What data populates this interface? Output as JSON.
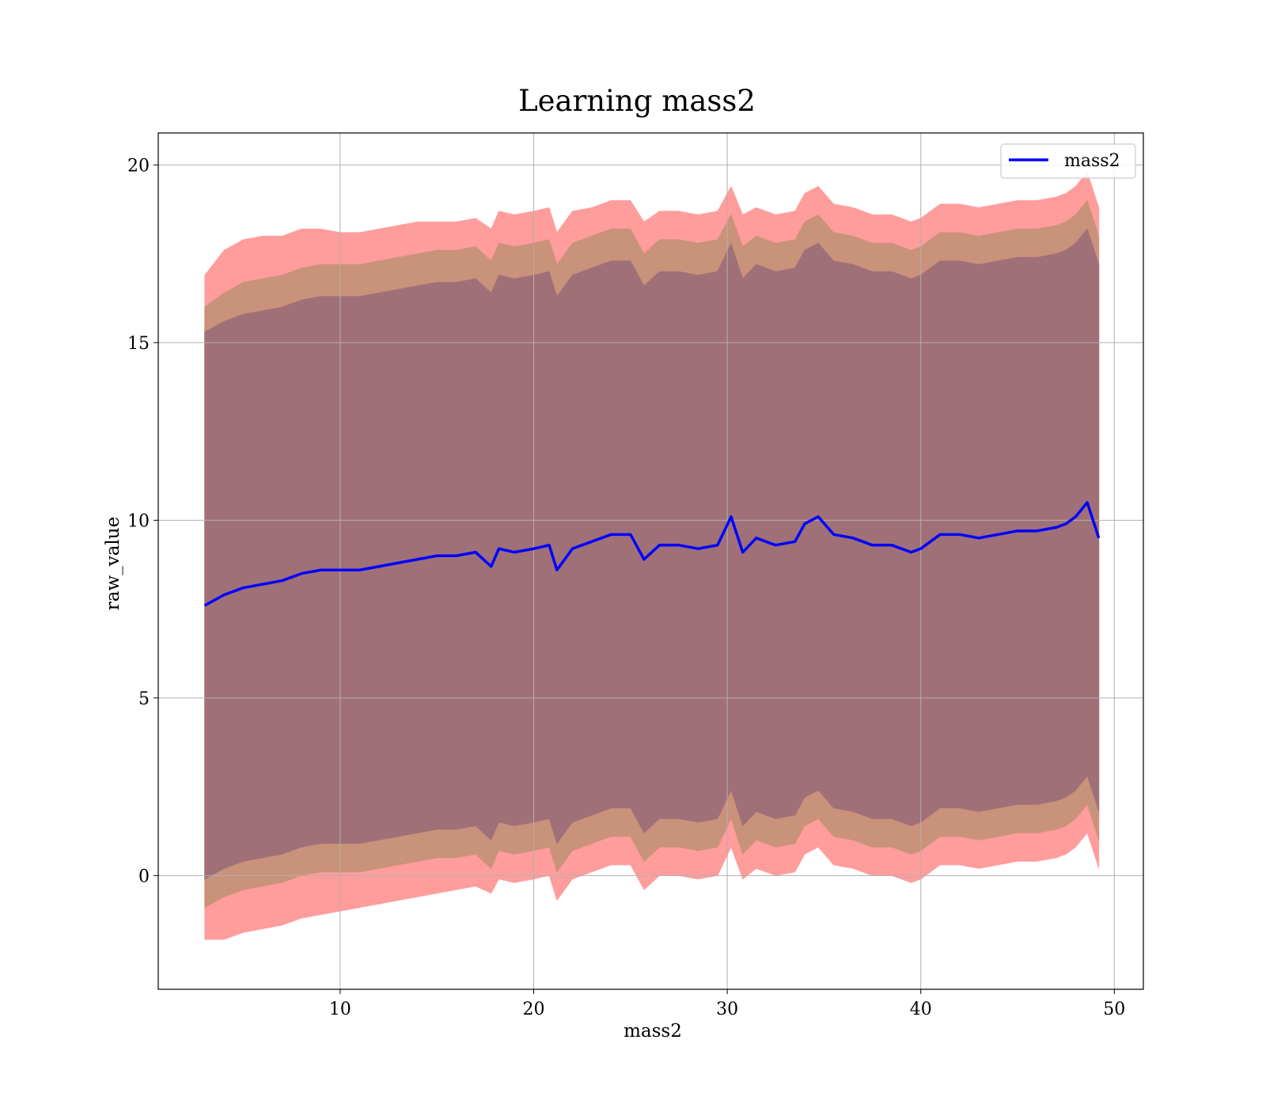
{
  "chart_data": {
    "type": "line",
    "title": "Learning mass2",
    "xlabel": "mass2",
    "ylabel": "raw_value",
    "xlim": [
      0.6,
      51.5
    ],
    "ylim": [
      -3.2,
      20.9
    ],
    "xticks": [
      10,
      20,
      30,
      40,
      50
    ],
    "yticks": [
      0,
      5,
      10,
      15,
      20
    ],
    "grid": true,
    "legend": {
      "position": "top-right",
      "entries": [
        "mass2"
      ]
    },
    "colors": {
      "line": "#0000ff",
      "band_outer": "#ff9c9c",
      "band_middle": "#c9927a",
      "band_inner": "#a07078",
      "grid": "#b0b0b0"
    },
    "series": [
      {
        "name": "mass2",
        "x": [
          3.0,
          4.0,
          5.0,
          6.0,
          7.0,
          8.0,
          9.0,
          10.0,
          11.0,
          12.0,
          13.0,
          14.0,
          15.0,
          16.0,
          17.0,
          17.8,
          18.2,
          19.0,
          20.0,
          20.8,
          21.2,
          22.0,
          23.0,
          24.0,
          25.0,
          25.7,
          26.5,
          27.5,
          28.5,
          29.5,
          30.2,
          30.8,
          31.5,
          32.5,
          33.5,
          34.0,
          34.7,
          35.5,
          36.5,
          37.5,
          38.5,
          39.5,
          40.0,
          41.0,
          42.0,
          43.0,
          44.0,
          45.0,
          46.0,
          47.0,
          47.5,
          48.0,
          48.6,
          49.2
        ],
        "y": [
          7.6,
          7.9,
          8.1,
          8.2,
          8.3,
          8.5,
          8.6,
          8.6,
          8.6,
          8.7,
          8.8,
          8.9,
          9.0,
          9.0,
          9.1,
          8.7,
          9.2,
          9.1,
          9.2,
          9.3,
          8.6,
          9.2,
          9.4,
          9.6,
          9.6,
          8.9,
          9.3,
          9.3,
          9.2,
          9.3,
          10.1,
          9.1,
          9.5,
          9.3,
          9.4,
          9.9,
          10.1,
          9.6,
          9.5,
          9.3,
          9.3,
          9.1,
          9.2,
          9.6,
          9.6,
          9.5,
          9.6,
          9.7,
          9.7,
          9.8,
          9.9,
          10.1,
          10.5,
          9.5
        ],
        "outer_upper": [
          16.9,
          17.6,
          17.9,
          18.0,
          18.0,
          18.2,
          18.2,
          18.1,
          18.1,
          18.2,
          18.3,
          18.4,
          18.4,
          18.4,
          18.5,
          18.2,
          18.7,
          18.6,
          18.7,
          18.8,
          18.1,
          18.7,
          18.8,
          19.0,
          19.0,
          18.4,
          18.7,
          18.7,
          18.6,
          18.7,
          19.4,
          18.6,
          18.8,
          18.6,
          18.7,
          19.2,
          19.4,
          18.9,
          18.8,
          18.6,
          18.6,
          18.4,
          18.5,
          18.9,
          18.9,
          18.8,
          18.9,
          19.0,
          19.0,
          19.1,
          19.2,
          19.4,
          19.8,
          18.8
        ],
        "outer_lower": [
          -1.8,
          -1.8,
          -1.6,
          -1.5,
          -1.4,
          -1.2,
          -1.1,
          -1.0,
          -0.9,
          -0.8,
          -0.7,
          -0.6,
          -0.5,
          -0.4,
          -0.3,
          -0.5,
          -0.1,
          -0.2,
          -0.1,
          0.0,
          -0.7,
          -0.1,
          0.1,
          0.3,
          0.3,
          -0.4,
          0.0,
          0.0,
          -0.1,
          0.0,
          0.8,
          -0.1,
          0.2,
          0.0,
          0.1,
          0.6,
          0.8,
          0.3,
          0.2,
          0.0,
          0.0,
          -0.2,
          -0.1,
          0.3,
          0.3,
          0.2,
          0.3,
          0.4,
          0.4,
          0.5,
          0.6,
          0.8,
          1.2,
          0.2
        ],
        "middle_upper": [
          16.0,
          16.4,
          16.7,
          16.8,
          16.9,
          17.1,
          17.2,
          17.2,
          17.2,
          17.3,
          17.4,
          17.5,
          17.6,
          17.6,
          17.7,
          17.3,
          17.8,
          17.7,
          17.8,
          17.9,
          17.2,
          17.8,
          18.0,
          18.2,
          18.2,
          17.5,
          17.9,
          17.9,
          17.8,
          17.9,
          18.6,
          17.7,
          18.0,
          17.8,
          17.9,
          18.4,
          18.6,
          18.1,
          18.0,
          17.8,
          17.8,
          17.6,
          17.7,
          18.1,
          18.1,
          18.0,
          18.1,
          18.2,
          18.2,
          18.3,
          18.4,
          18.6,
          19.0,
          18.0
        ],
        "middle_lower": [
          -0.9,
          -0.6,
          -0.4,
          -0.3,
          -0.2,
          0.0,
          0.1,
          0.1,
          0.1,
          0.2,
          0.3,
          0.4,
          0.5,
          0.5,
          0.6,
          0.2,
          0.7,
          0.6,
          0.7,
          0.8,
          0.1,
          0.7,
          0.9,
          1.1,
          1.1,
          0.4,
          0.8,
          0.8,
          0.7,
          0.8,
          1.6,
          0.6,
          1.0,
          0.8,
          0.9,
          1.4,
          1.6,
          1.1,
          1.0,
          0.8,
          0.8,
          0.6,
          0.7,
          1.1,
          1.1,
          1.0,
          1.1,
          1.2,
          1.2,
          1.3,
          1.4,
          1.6,
          2.0,
          1.0
        ],
        "inner_upper": [
          15.3,
          15.6,
          15.8,
          15.9,
          16.0,
          16.2,
          16.3,
          16.3,
          16.3,
          16.4,
          16.5,
          16.6,
          16.7,
          16.7,
          16.8,
          16.4,
          16.9,
          16.8,
          16.9,
          17.0,
          16.3,
          16.9,
          17.1,
          17.3,
          17.3,
          16.6,
          17.0,
          17.0,
          16.9,
          17.0,
          17.8,
          16.8,
          17.2,
          17.0,
          17.1,
          17.6,
          17.8,
          17.3,
          17.2,
          17.0,
          17.0,
          16.8,
          16.9,
          17.3,
          17.3,
          17.2,
          17.3,
          17.4,
          17.4,
          17.5,
          17.6,
          17.8,
          18.2,
          17.2
        ],
        "inner_lower": [
          -0.1,
          0.2,
          0.4,
          0.5,
          0.6,
          0.8,
          0.9,
          0.9,
          0.9,
          1.0,
          1.1,
          1.2,
          1.3,
          1.3,
          1.4,
          1.0,
          1.5,
          1.4,
          1.5,
          1.6,
          0.9,
          1.5,
          1.7,
          1.9,
          1.9,
          1.2,
          1.6,
          1.6,
          1.5,
          1.6,
          2.4,
          1.4,
          1.8,
          1.6,
          1.7,
          2.2,
          2.4,
          1.9,
          1.8,
          1.6,
          1.6,
          1.4,
          1.5,
          1.9,
          1.9,
          1.8,
          1.9,
          2.0,
          2.0,
          2.1,
          2.2,
          2.4,
          2.8,
          1.8
        ]
      }
    ]
  }
}
